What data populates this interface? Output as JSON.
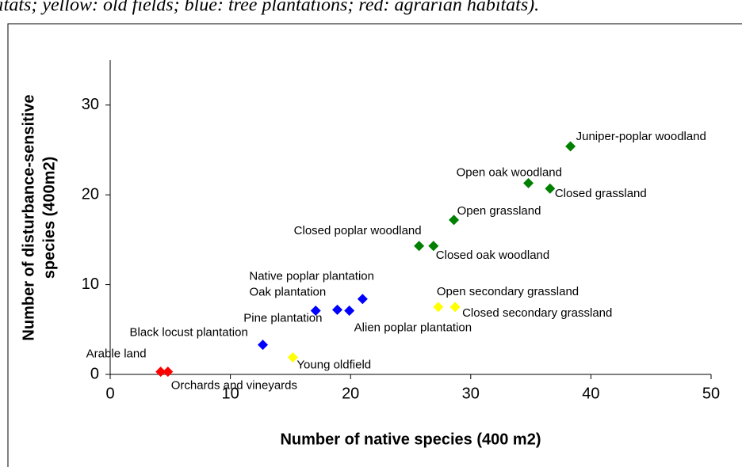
{
  "chart_data": {
    "type": "scatter",
    "caption": "itats; yellow: old fields; blue: tree plantations; red: agrarian habitats).",
    "xlabel": "Number of native species (400 m2)",
    "ylabel": [
      "Number of disturbance-sensitive",
      "species (400m2)"
    ],
    "xlim": [
      0,
      50
    ],
    "xticks": [
      0,
      10,
      20,
      30,
      40,
      50
    ],
    "ylim": [
      0,
      35
    ],
    "yticks": [
      0,
      10,
      20,
      30
    ],
    "series": [
      {
        "color": "#008000",
        "x": [
          38.3,
          34.8,
          36.6,
          28.6,
          25.7,
          26.9
        ],
        "values": [
          25.4,
          21.3,
          20.7,
          17.2,
          14.3,
          14.3
        ],
        "labels": [
          "Juniper-poplar woodland",
          "Open oak woodland",
          "Closed grassland",
          "Open grassland",
          "Closed poplar woodland",
          "Closed oak woodland"
        ]
      },
      {
        "color": "#0000ff",
        "x": [
          21.0,
          18.9,
          19.9,
          17.1,
          12.7
        ],
        "values": [
          8.4,
          7.2,
          7.1,
          7.1,
          3.3
        ],
        "labels": [
          "Native poplar plantation",
          "Oak plantation",
          "Alien poplar plantation",
          "Pine plantation",
          "Black locust plantation"
        ]
      },
      {
        "color": "#ffff00",
        "x": [
          27.3,
          28.7,
          15.2
        ],
        "values": [
          7.5,
          7.5,
          1.9
        ],
        "labels": [
          "Open secondary grassland",
          "Closed secondary grassland",
          "Young oldfield"
        ]
      },
      {
        "color": "#ff0000",
        "x": [
          4.2,
          4.8
        ],
        "values": [
          0.3,
          0.3
        ],
        "labels": [
          "Arable land",
          "Orchards and vineyards"
        ]
      }
    ]
  }
}
